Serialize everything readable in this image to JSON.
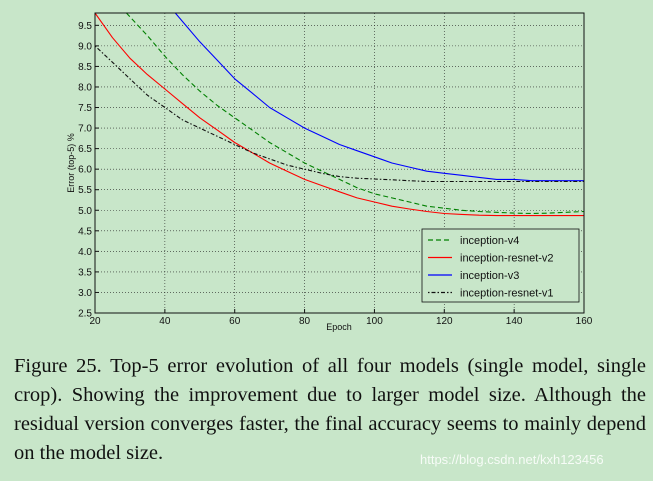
{
  "chart_data": {
    "type": "line",
    "title": "",
    "xlabel": "Epoch",
    "ylabel": "Error (top-5) %",
    "xlim": [
      20,
      160
    ],
    "ylim": [
      2.5,
      9.8
    ],
    "xticks": [
      "20",
      "40",
      "60",
      "80",
      "100",
      "120",
      "140",
      "160"
    ],
    "yticks": [
      "2.5",
      "3.0",
      "3.5",
      "4.0",
      "4.5",
      "5.0",
      "5.5",
      "6.0",
      "6.5",
      "7.0",
      "7.5",
      "8.0",
      "8.5",
      "9.0",
      "9.5"
    ],
    "grid": true,
    "legend_position": "bottom-right",
    "series": [
      {
        "name": "inception-v4",
        "color": "#008000",
        "style": "dashed",
        "x": [
          29,
          35,
          40,
          45,
          50,
          55,
          60,
          65,
          70,
          75,
          80,
          85,
          90,
          95,
          100,
          105,
          110,
          115,
          120,
          125,
          130,
          135,
          140,
          145,
          150,
          155,
          160
        ],
        "y": [
          9.8,
          9.25,
          8.75,
          8.3,
          7.9,
          7.55,
          7.25,
          6.95,
          6.65,
          6.4,
          6.15,
          5.95,
          5.75,
          5.55,
          5.4,
          5.3,
          5.2,
          5.1,
          5.05,
          5.0,
          4.97,
          4.95,
          4.93,
          4.92,
          4.93,
          4.95,
          4.97
        ]
      },
      {
        "name": "inception-resnet-v2",
        "color": "#ff0000",
        "style": "solid",
        "x": [
          20,
          25,
          30,
          35,
          40,
          45,
          50,
          55,
          60,
          65,
          70,
          75,
          80,
          85,
          90,
          95,
          100,
          105,
          110,
          115,
          120,
          125,
          130,
          135,
          140,
          145,
          150,
          155,
          160
        ],
        "y": [
          9.8,
          9.2,
          8.7,
          8.3,
          7.95,
          7.6,
          7.25,
          6.95,
          6.65,
          6.4,
          6.15,
          5.95,
          5.75,
          5.6,
          5.45,
          5.3,
          5.2,
          5.1,
          5.03,
          4.97,
          4.92,
          4.9,
          4.88,
          4.87,
          4.87,
          4.87,
          4.87,
          4.87,
          4.87
        ]
      },
      {
        "name": "inception-v3",
        "color": "#0000ff",
        "style": "solid",
        "x": [
          43,
          50,
          55,
          60,
          65,
          70,
          75,
          80,
          85,
          90,
          95,
          100,
          105,
          110,
          115,
          120,
          125,
          130,
          135,
          140,
          145,
          150,
          155,
          160
        ],
        "y": [
          9.8,
          9.1,
          8.65,
          8.2,
          7.85,
          7.5,
          7.25,
          7.0,
          6.8,
          6.6,
          6.45,
          6.3,
          6.15,
          6.05,
          5.95,
          5.9,
          5.85,
          5.8,
          5.75,
          5.75,
          5.72,
          5.72,
          5.72,
          5.72
        ]
      },
      {
        "name": "inception-resnet-v1",
        "color": "#111111",
        "style": "dashdot",
        "x": [
          20,
          25,
          30,
          35,
          40,
          45,
          50,
          55,
          60,
          65,
          70,
          75,
          80,
          85,
          90,
          95,
          100,
          105,
          110,
          115,
          120,
          125,
          130,
          135,
          140,
          145,
          150,
          155,
          160
        ],
        "y": [
          9.0,
          8.6,
          8.2,
          7.8,
          7.5,
          7.2,
          7.0,
          6.8,
          6.6,
          6.4,
          6.25,
          6.1,
          6.0,
          5.9,
          5.82,
          5.78,
          5.76,
          5.74,
          5.72,
          5.7,
          5.7,
          5.7,
          5.7,
          5.7,
          5.7,
          5.7,
          5.7,
          5.7,
          5.7
        ]
      }
    ]
  },
  "caption": "Figure 25. Top-5 error evolution of all four models (single model, single crop). Showing the improvement due to larger model size. Although the residual version converges faster, the final accuracy seems to mainly depend on the model size.",
  "watermark": "https://blog.csdn.net/kxh123456"
}
